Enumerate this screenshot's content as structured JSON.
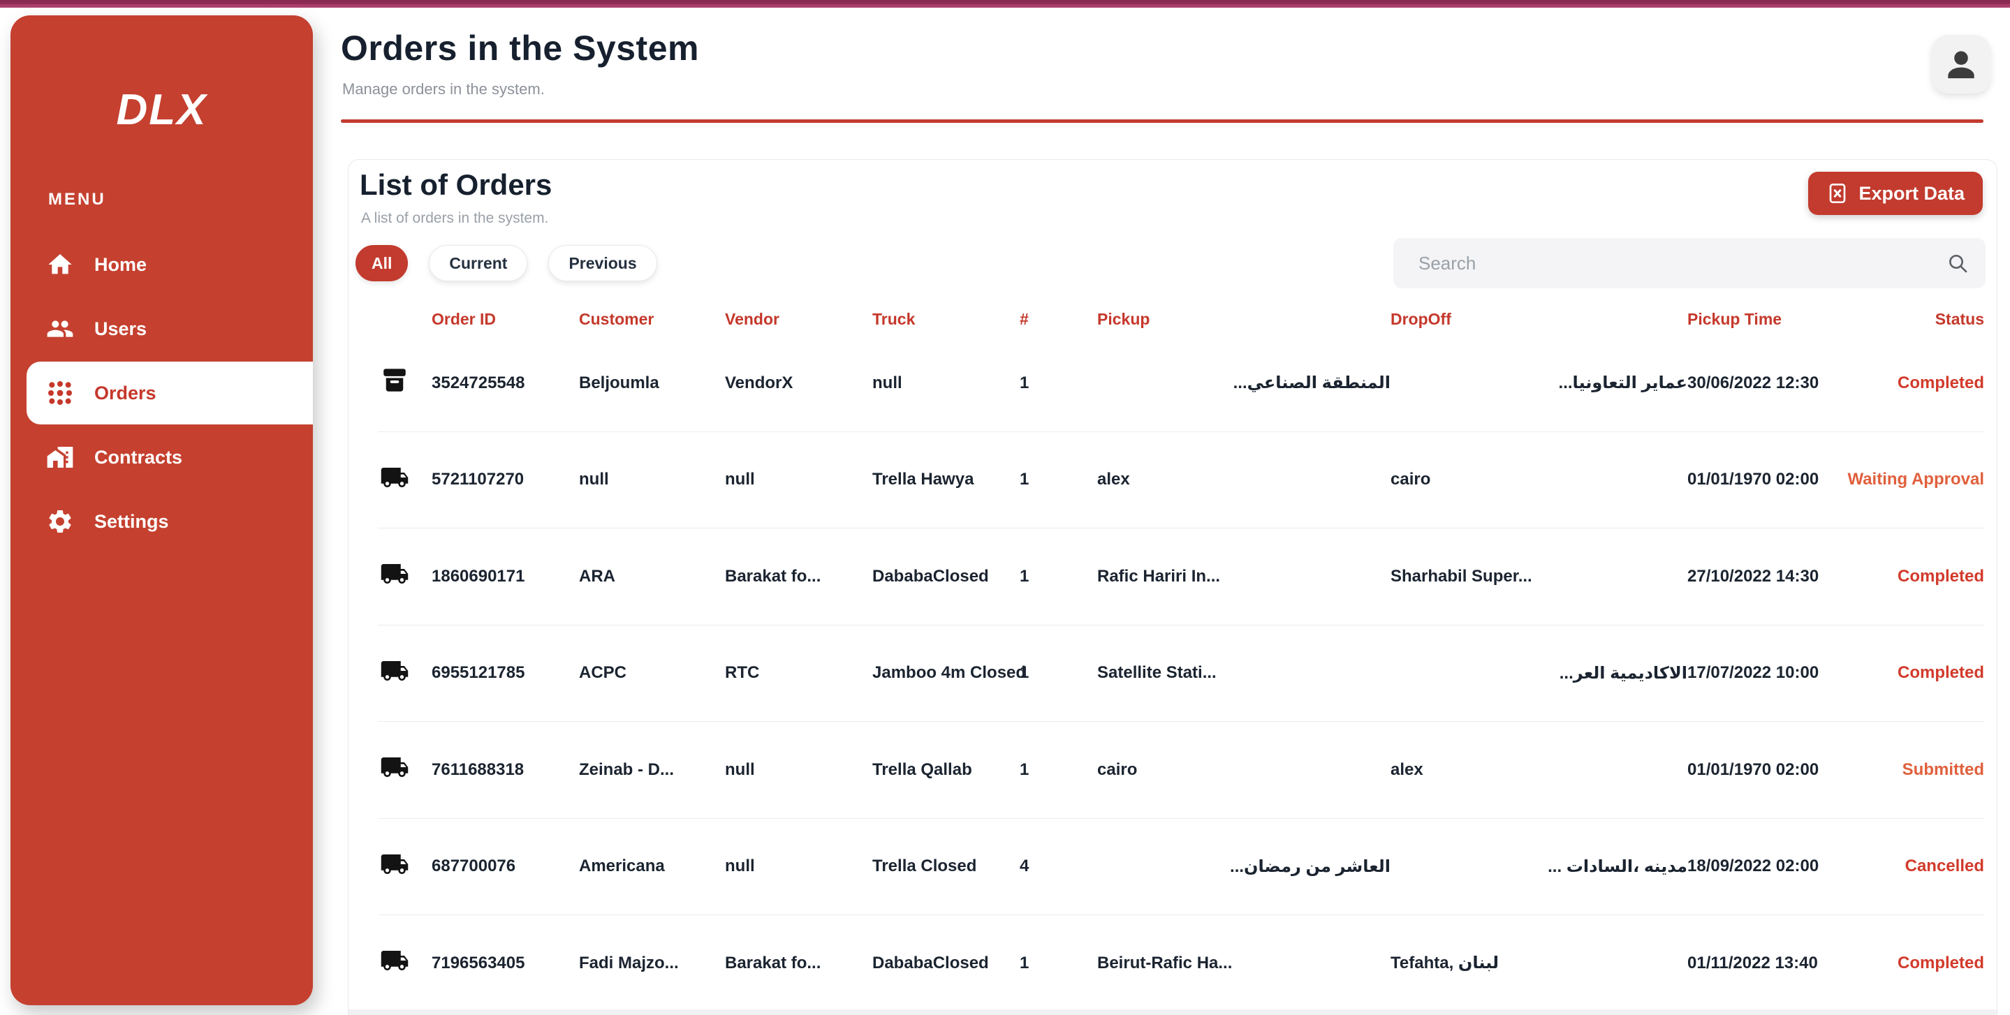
{
  "topbar": {
    "color_top": "#8e2c55",
    "color_bottom": "#a83c68"
  },
  "accent_red": "#c23b2e",
  "sidebar": {
    "logo": "DLX",
    "menu_label": "MENU",
    "items": [
      {
        "label": "Home",
        "icon": "home-icon",
        "active": false
      },
      {
        "label": "Users",
        "icon": "users-icon",
        "active": false
      },
      {
        "label": "Orders",
        "icon": "orders-icon",
        "active": true
      },
      {
        "label": "Contracts",
        "icon": "contracts-icon",
        "active": false
      },
      {
        "label": "Settings",
        "icon": "settings-icon",
        "active": false
      }
    ]
  },
  "header": {
    "title": "Orders in the System",
    "subtitle": "Manage orders in the system."
  },
  "card": {
    "title": "List of Orders",
    "subtitle": "A list of orders in the system.",
    "export_label": "Export Data",
    "export_icon": "excel-file-icon",
    "search_placeholder": "Search",
    "filters": [
      {
        "label": "All",
        "active": true
      },
      {
        "label": "Current",
        "active": false
      },
      {
        "label": "Previous",
        "active": false
      }
    ]
  },
  "table": {
    "columns": [
      "Order ID",
      "Customer",
      "Vendor",
      "Truck",
      "#",
      "Pickup",
      "DropOff",
      "Pickup Time",
      "Status"
    ],
    "status_colors": {
      "completed": "#d23a2b",
      "pending": "#e0603c"
    },
    "rows": [
      {
        "icon": "package-icon",
        "order_id": "3524725548",
        "customer": "Beljoumla",
        "vendor": "VendorX",
        "truck": "null",
        "qty": "1",
        "pickup": "المنطقة الصناعي...",
        "dropoff": "عماير التعاونيا...",
        "pickup_time": "30/06/2022 12:30",
        "status": "Completed",
        "status_color": "#d23a2b"
      },
      {
        "icon": "truck-icon",
        "order_id": "5721107270",
        "customer": "null",
        "vendor": "null",
        "truck": "Trella Hawya",
        "qty": "1",
        "pickup": "alex",
        "dropoff": "cairo",
        "pickup_time": "01/01/1970 02:00",
        "status": "Waiting Approval",
        "status_color": "#e0603c"
      },
      {
        "icon": "truck-icon",
        "order_id": "1860690171",
        "customer": "ARA",
        "vendor": "Barakat fo...",
        "truck": "DababaClosed",
        "qty": "1",
        "pickup": "Rafic Hariri In...",
        "dropoff": "Sharhabil Super...",
        "pickup_time": "27/10/2022 14:30",
        "status": "Completed",
        "status_color": "#d23a2b"
      },
      {
        "icon": "truck-icon",
        "order_id": "6955121785",
        "customer": "ACPC",
        "vendor": "RTC",
        "truck": "Jamboo 4m Closed",
        "qty": "1",
        "pickup": "Satellite Stati...",
        "dropoff": "الاكاديمية العر...",
        "pickup_time": "17/07/2022 10:00",
        "status": "Completed",
        "status_color": "#d23a2b"
      },
      {
        "icon": "truck-icon",
        "order_id": "7611688318",
        "customer": "Zeinab - D...",
        "vendor": "null",
        "truck": "Trella Qallab",
        "qty": "1",
        "pickup": "cairo",
        "dropoff": "alex",
        "pickup_time": "01/01/1970 02:00",
        "status": "Submitted",
        "status_color": "#e0603c"
      },
      {
        "icon": "truck-icon",
        "order_id": "687700076",
        "customer": "Americana",
        "vendor": "null",
        "truck": "Trella Closed",
        "qty": "4",
        "pickup": "العاشر من رمضان...",
        "dropoff": "مدينه ،السادات ...",
        "pickup_time": "18/09/2022 02:00",
        "status": "Cancelled",
        "status_color": "#d23a2b"
      },
      {
        "icon": "truck-icon",
        "order_id": "7196563405",
        "customer": "Fadi Majzo...",
        "vendor": "Barakat fo...",
        "truck": "DababaClosed",
        "qty": "1",
        "pickup": "Beirut-Rafic Ha...",
        "dropoff": "Tefahta, لبنان",
        "pickup_time": "01/11/2022 13:40",
        "status": "Completed",
        "status_color": "#d23a2b"
      }
    ]
  }
}
